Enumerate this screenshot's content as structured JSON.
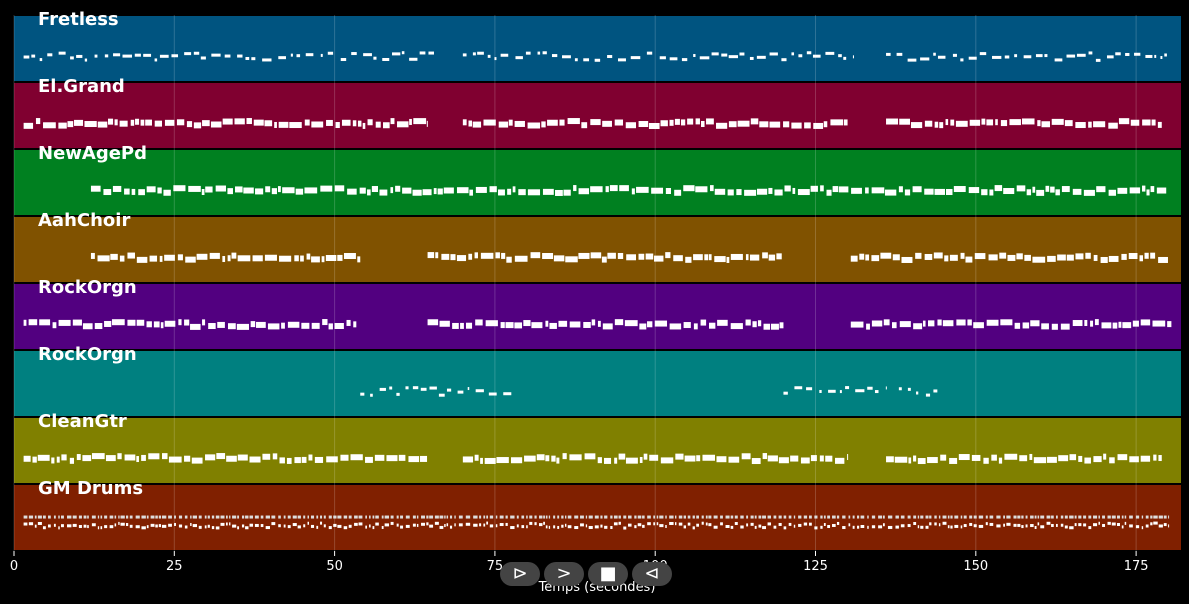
{
  "chart_data": {
    "type": "piano-roll",
    "xlabel": "Temps (secondes)",
    "xlim": [
      0,
      182
    ],
    "xticks": [
      0,
      25,
      50,
      75,
      100,
      125,
      150,
      175
    ],
    "grid": true,
    "tracks": [
      {
        "name": "Fretless",
        "color": "#005480",
        "style": "sparse",
        "segments": [
          [
            1.5,
            65.5
          ],
          [
            70,
            131
          ],
          [
            136,
            180
          ]
        ]
      },
      {
        "name": "El.Grand",
        "color": "#800030",
        "style": "dense",
        "segments": [
          [
            1.5,
            64.5
          ],
          [
            70,
            130
          ],
          [
            136,
            179
          ]
        ]
      },
      {
        "name": "NewAgePd",
        "color": "#008020",
        "style": "dense",
        "segments": [
          [
            12,
            180
          ]
        ]
      },
      {
        "name": "AahChoir",
        "color": "#805200",
        "style": "dense",
        "segments": [
          [
            12,
            54
          ],
          [
            64.5,
            120
          ],
          [
            130.5,
            180
          ]
        ]
      },
      {
        "name": "RockOrgn",
        "color": "#520080",
        "style": "dense",
        "segments": [
          [
            1.5,
            53.5
          ],
          [
            64.5,
            120
          ],
          [
            130.5,
            180.5
          ]
        ]
      },
      {
        "name": "RockOrgn",
        "color": "#008080",
        "style": "sparse",
        "segments": [
          [
            54,
            71
          ],
          [
            72,
            78
          ],
          [
            120,
            136
          ],
          [
            138,
            144
          ]
        ]
      },
      {
        "name": "CleanGtr",
        "color": "#808000",
        "style": "dense",
        "segments": [
          [
            1.5,
            64.5
          ],
          [
            70,
            130
          ],
          [
            136,
            179
          ]
        ]
      },
      {
        "name": "GM Drums",
        "color": "#802000",
        "style": "drums",
        "segments": [
          [
            1.5,
            180
          ]
        ]
      }
    ]
  },
  "controls": {
    "play": "⊳",
    "next": ">",
    "stop": "■",
    "prev": "⊲"
  }
}
